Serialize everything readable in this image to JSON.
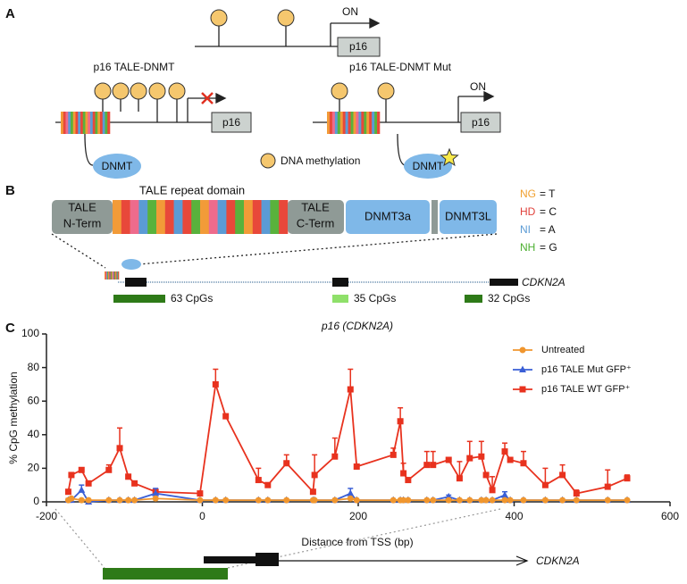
{
  "panels": {
    "a": {
      "label": "A",
      "top": {
        "on": "ON",
        "gene": "p16"
      },
      "left": {
        "title": "p16 TALE-DNMT",
        "gene": "p16",
        "enzyme": "DNMT"
      },
      "right": {
        "title": "p16 TALE-DNMT Mut",
        "on": "ON",
        "gene": "p16",
        "enzyme": "DNMT"
      },
      "legend": "DNA methylation"
    },
    "b": {
      "label": "B",
      "repeat_title": "TALE repeat domain",
      "domains": {
        "n_term": [
          "TALE",
          "N-Term"
        ],
        "c_term": [
          "TALE",
          "C-Term"
        ],
        "dnmt3a": "DNMT3a",
        "dnmt3l": "DNMT3L"
      },
      "code_key": [
        {
          "code": "NG",
          "meaning": "= T",
          "color": "#f0a030"
        },
        {
          "code": "HD",
          "meaning": "= C",
          "color": "#e0403a"
        },
        {
          "code": "NI",
          "meaning": "= A",
          "color": "#5b9bd5"
        },
        {
          "code": "NH",
          "meaning": "= G",
          "color": "#4caf30"
        }
      ],
      "gene": "CDKN2A",
      "islands": [
        "63 CpGs",
        "35 CpGs",
        "32 CpGs"
      ]
    },
    "c": {
      "label": "C",
      "gene": "CDKN2A"
    }
  },
  "chart_data": {
    "type": "line",
    "title": "p16 (CDKN2A)",
    "x_label": "Distance from TSS (bp)",
    "y_label": "% CpG methylation",
    "xlim": [
      -200,
      600
    ],
    "xticks": [
      -200,
      0,
      200,
      400,
      600
    ],
    "ylim": [
      0,
      100
    ],
    "yticks": [
      0,
      20,
      40,
      60,
      80,
      100
    ],
    "legend": "upper right",
    "x": [
      -172,
      -168,
      -155,
      -146,
      -120,
      -106,
      -95,
      -87,
      -60,
      -3,
      17,
      30,
      72,
      84,
      108,
      142,
      144,
      170,
      190,
      198,
      245,
      254,
      258,
      264,
      288,
      296,
      316,
      330,
      343,
      358,
      364,
      372,
      388,
      395,
      412,
      440,
      462,
      480,
      520,
      545
    ],
    "series": [
      {
        "name": "Untreated",
        "color": "#f0962e",
        "marker": "circle",
        "values": [
          1,
          2,
          1,
          1,
          1,
          1,
          1,
          1,
          2,
          1,
          1,
          1,
          1,
          1,
          1,
          1,
          1,
          1,
          2,
          1,
          1,
          1,
          1,
          1,
          1,
          1,
          1,
          1,
          1,
          1,
          1,
          1,
          1,
          1,
          1,
          1,
          1,
          1,
          1,
          1
        ]
      },
      {
        "name": "p16 TALE Mut GFP⁺",
        "color": "#3a5fd6",
        "marker": "triangle",
        "values": [
          1,
          1,
          7,
          0,
          1,
          1,
          1,
          1,
          5,
          1,
          1,
          1,
          1,
          1,
          1,
          1,
          1,
          1,
          5,
          1,
          1,
          1,
          1,
          1,
          1,
          1,
          3,
          1,
          1,
          1,
          1,
          1,
          4,
          1,
          1,
          1,
          1,
          1,
          1,
          1
        ],
        "errors": [
          1,
          1,
          3,
          0,
          0,
          0,
          0,
          0,
          3,
          0,
          0,
          0,
          0,
          0,
          0,
          0,
          0,
          0,
          3,
          0,
          0,
          0,
          0,
          0,
          0,
          0,
          1,
          0,
          0,
          0,
          0,
          0,
          2,
          0,
          0,
          0,
          0,
          0,
          0,
          0
        ]
      },
      {
        "name": "p16 TALE WT GFP⁺",
        "color": "#e8321e",
        "marker": "square",
        "values": [
          6,
          16,
          19,
          11,
          19,
          32,
          15,
          11,
          6,
          5,
          70,
          51,
          13,
          10,
          23,
          6,
          16,
          27,
          67,
          21,
          28,
          48,
          17,
          13,
          22,
          22,
          25,
          14,
          26,
          27,
          16,
          7,
          30,
          25,
          23,
          10,
          16,
          5,
          9,
          14
        ],
        "errors": [
          0,
          0,
          0,
          0,
          3,
          12,
          0,
          0,
          0,
          0,
          9,
          0,
          7,
          0,
          5,
          0,
          12,
          11,
          12,
          0,
          4,
          8,
          6,
          0,
          8,
          8,
          0,
          10,
          10,
          9,
          0,
          8,
          5,
          0,
          7,
          10,
          6,
          2,
          10,
          2
        ]
      }
    ]
  }
}
